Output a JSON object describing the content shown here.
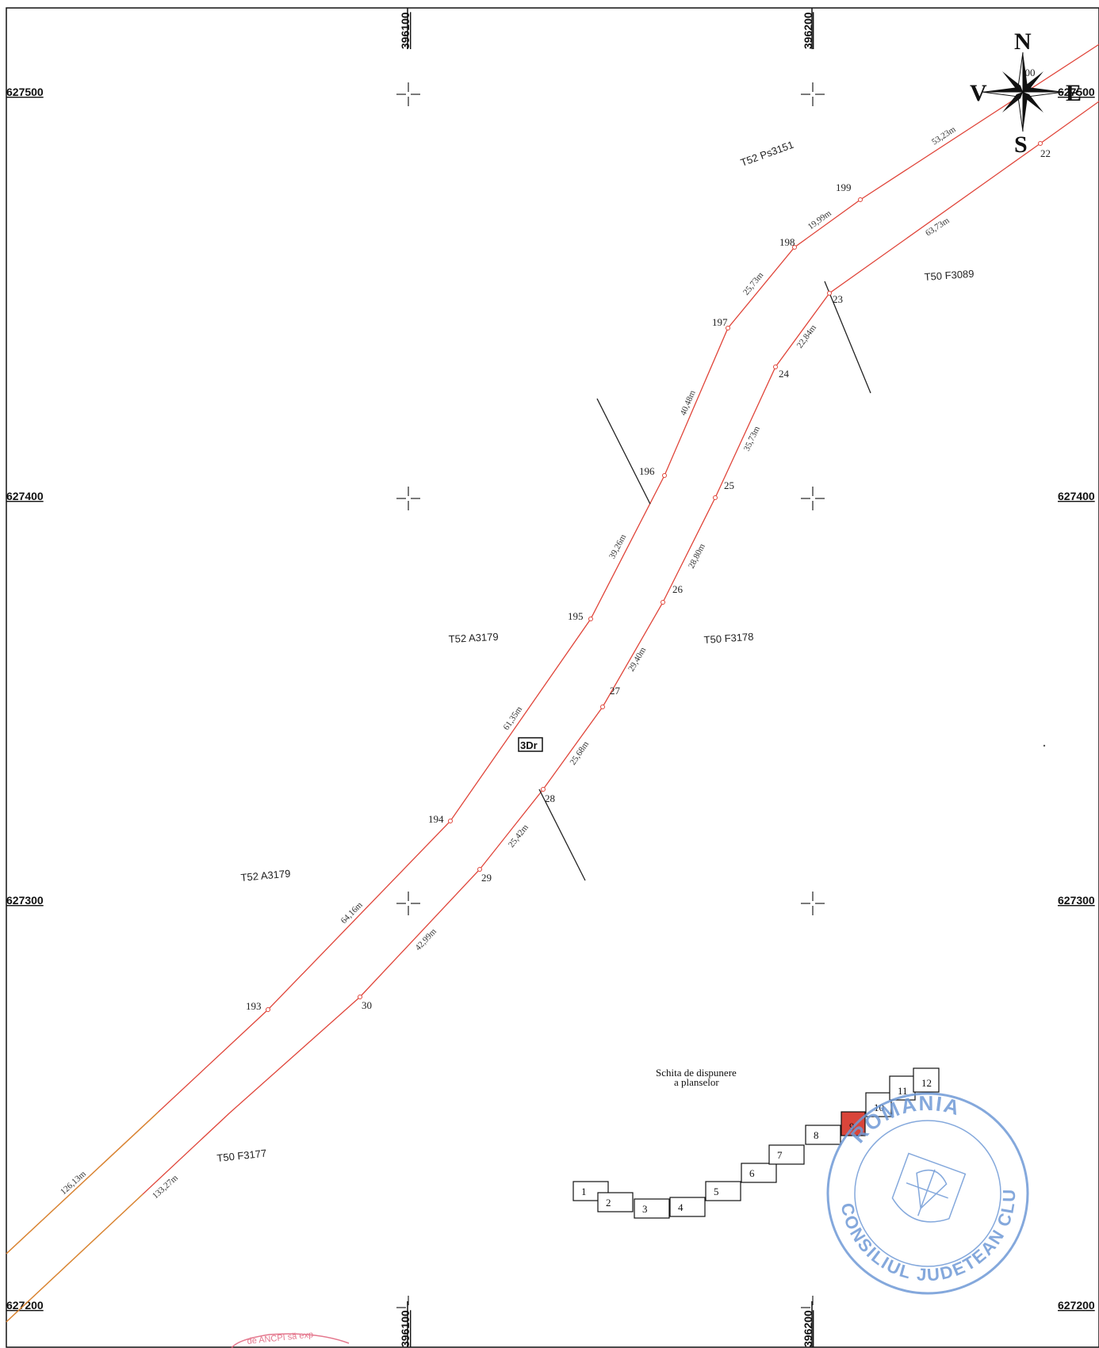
{
  "grid": {
    "easting": [
      "396100",
      "396200"
    ],
    "northing": [
      "627500",
      "627400",
      "627300",
      "627200"
    ]
  },
  "compass": {
    "north": "N",
    "south": "S",
    "east": "E",
    "west": "V"
  },
  "road_code": "3Dr",
  "parcels": [
    "T52 Ps3151",
    "T50 F3089",
    "T52 A3179",
    "T50 F3178",
    "T52 A3179",
    "T50 F3177"
  ],
  "north_boundary": {
    "points": [
      "193",
      "194",
      "195",
      "196",
      "197",
      "198",
      "199",
      "200"
    ],
    "segments": [
      "126,13m",
      "64,16m",
      "61,35m",
      "39,26m",
      "40,48m",
      "25,73m",
      "19,99m",
      "53,23m"
    ]
  },
  "south_boundary": {
    "points": [
      "30",
      "29",
      "28",
      "27",
      "26",
      "25",
      "24",
      "23",
      "22"
    ],
    "segments": [
      "133,27m",
      "42,99m",
      "25,42m",
      "25,68m",
      "29,40m",
      "28,80m",
      "35,73m",
      "22,84m",
      "63,73m"
    ]
  },
  "layout_sketch": {
    "title_line1": "Schita de dispunere",
    "title_line2": "a planselor",
    "sheets": [
      "1",
      "2",
      "3",
      "4",
      "5",
      "6",
      "7",
      "8",
      "9",
      "10",
      "11",
      "12"
    ],
    "current_sheet": "9",
    "current_color": "#d9453a"
  },
  "stamp": {
    "text_top": "ROMANIA",
    "text_bottom": "CONSILIUL JUDETEAN CLUJ",
    "color": "#6f9ad6"
  },
  "stamp2": {
    "text": "de ANCPI să exp",
    "color": "#e0607a"
  },
  "colors": {
    "boundary": "#e0453a",
    "boundary_far": "#d88a30",
    "frame": "#111111"
  }
}
